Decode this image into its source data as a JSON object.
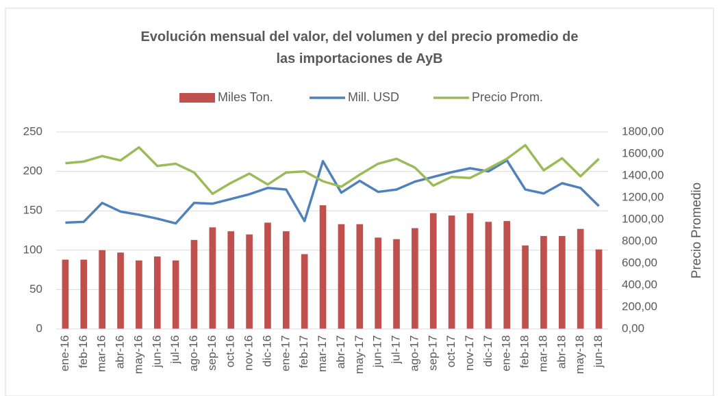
{
  "chart_data": {
    "type": "bar_line",
    "title": "Evolución mensual del valor, del volumen y del precio promedio de las importaciones de AyB",
    "y2_label": "Precio Promedio",
    "categories": [
      "ene-16",
      "feb-16",
      "mar-16",
      "abr-16",
      "may-16",
      "jun-16",
      "jul-16",
      "ago-16",
      "sep-16",
      "oct-16",
      "nov-16",
      "dic-16",
      "ene-17",
      "feb-17",
      "mar-17",
      "abr-17",
      "may-17",
      "jun-17",
      "jul-17",
      "ago-17",
      "sep-17",
      "oct-17",
      "nov-17",
      "dic-17",
      "ene-18",
      "feb-18",
      "mar-18",
      "abr-18",
      "may-18",
      "jun-18"
    ],
    "series": [
      {
        "name": "Miles Ton.",
        "type": "bar",
        "color": "#c0504d",
        "values": [
          88,
          88,
          100,
          97,
          87,
          92,
          87,
          113,
          129,
          124,
          120,
          135,
          124,
          95,
          157,
          133,
          133,
          116,
          114,
          128,
          147,
          144,
          147,
          136,
          137,
          106,
          118,
          118,
          127,
          101
        ]
      },
      {
        "name": "Mill. USD",
        "type": "line",
        "color": "#4f81bd",
        "values": [
          135,
          136,
          160,
          149,
          145,
          140,
          134,
          160,
          159,
          165,
          171,
          179,
          177,
          137,
          213,
          173,
          188,
          174,
          177,
          187,
          193,
          199,
          204,
          200,
          214,
          177,
          172,
          185,
          179,
          156
        ]
      },
      {
        "name": "Precio Prom.",
        "type": "line",
        "axis": "y2",
        "color": "#9bbb59",
        "values": [
          1515,
          1530,
          1580,
          1540,
          1660,
          1490,
          1510,
          1430,
          1235,
          1335,
          1420,
          1320,
          1430,
          1440,
          1350,
          1300,
          1410,
          1510,
          1555,
          1475,
          1310,
          1390,
          1380,
          1465,
          1555,
          1680,
          1450,
          1560,
          1395,
          1555
        ]
      }
    ],
    "ylim": [
      0,
      250
    ],
    "yticks": [
      0,
      50,
      100,
      150,
      200,
      250
    ],
    "y2lim": [
      0,
      1800
    ],
    "y2ticks": [
      {
        "value": 0,
        "label": "0,00"
      },
      {
        "value": 200,
        "label": "200,00"
      },
      {
        "value": 400,
        "label": "400,00"
      },
      {
        "value": 600,
        "label": "600,00"
      },
      {
        "value": 800,
        "label": "800,00"
      },
      {
        "value": 1000,
        "label": "1000,00"
      },
      {
        "value": 1200,
        "label": "1200,00"
      },
      {
        "value": 1400,
        "label": "1400,00"
      },
      {
        "value": 1600,
        "label": "1600,00"
      },
      {
        "value": 1800,
        "label": "1800,00"
      }
    ],
    "grid": true
  }
}
